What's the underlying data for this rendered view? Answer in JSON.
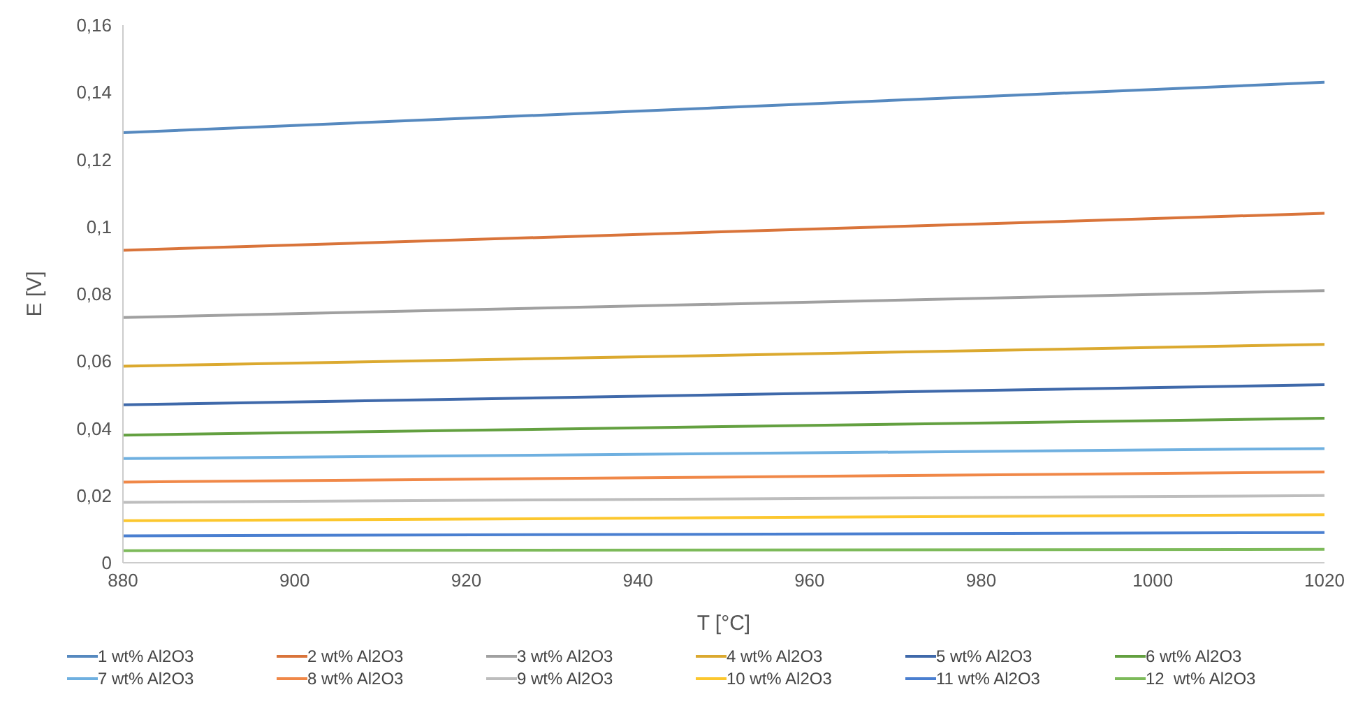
{
  "chart_data": {
    "type": "line",
    "xlabel": "T [°C]",
    "ylabel": "E [V]",
    "xlim": [
      880,
      1020
    ],
    "xticks": [
      880,
      900,
      920,
      940,
      960,
      980,
      1000,
      1020
    ],
    "ylim": [
      0,
      0.16
    ],
    "yticks": [
      {
        "value": 0,
        "label": "0"
      },
      {
        "value": 0.02,
        "label": "0,02"
      },
      {
        "value": 0.04,
        "label": "0,04"
      },
      {
        "value": 0.06,
        "label": "0,06"
      },
      {
        "value": 0.08,
        "label": "0,08"
      },
      {
        "value": 0.1,
        "label": "0,1"
      },
      {
        "value": 0.12,
        "label": "0,12"
      },
      {
        "value": 0.14,
        "label": "0,14"
      },
      {
        "value": 0.16,
        "label": "0,16"
      }
    ],
    "x": [
      880,
      1020
    ],
    "grid": false,
    "legend": "bottom",
    "marker": "none",
    "line_style": "solid",
    "series": [
      {
        "name": "1 wt% Al2O3",
        "color": "#5689bf",
        "values": [
          0.128,
          0.143
        ]
      },
      {
        "name": "2 wt% Al2O3",
        "color": "#d9743a",
        "values": [
          0.093,
          0.104
        ]
      },
      {
        "name": "3 wt% Al2O3",
        "color": "#a0a0a0",
        "values": [
          0.073,
          0.081
        ]
      },
      {
        "name": "4 wt% Al2O3",
        "color": "#dba92f",
        "values": [
          0.0585,
          0.065
        ]
      },
      {
        "name": "5 wt% Al2O3",
        "color": "#3f69aa",
        "values": [
          0.047,
          0.053
        ]
      },
      {
        "name": "6 wt% Al2O3",
        "color": "#63a040",
        "values": [
          0.038,
          0.043
        ]
      },
      {
        "name": "7 wt% Al2O3",
        "color": "#6fb0e0",
        "values": [
          0.031,
          0.034
        ]
      },
      {
        "name": "8 wt% Al2O3",
        "color": "#f08848",
        "values": [
          0.024,
          0.027
        ]
      },
      {
        "name": "9 wt% Al2O3",
        "color": "#bdbdbd",
        "values": [
          0.018,
          0.02
        ]
      },
      {
        "name": "10 wt% Al2O3",
        "color": "#fcc72e",
        "values": [
          0.0125,
          0.0143
        ]
      },
      {
        "name": "11 wt% Al2O3",
        "color": "#4a7fd0",
        "values": [
          0.008,
          0.009
        ]
      },
      {
        "name": "12  wt% Al2O3",
        "color": "#7dba5a",
        "values": [
          0.0036,
          0.004
        ]
      }
    ]
  }
}
